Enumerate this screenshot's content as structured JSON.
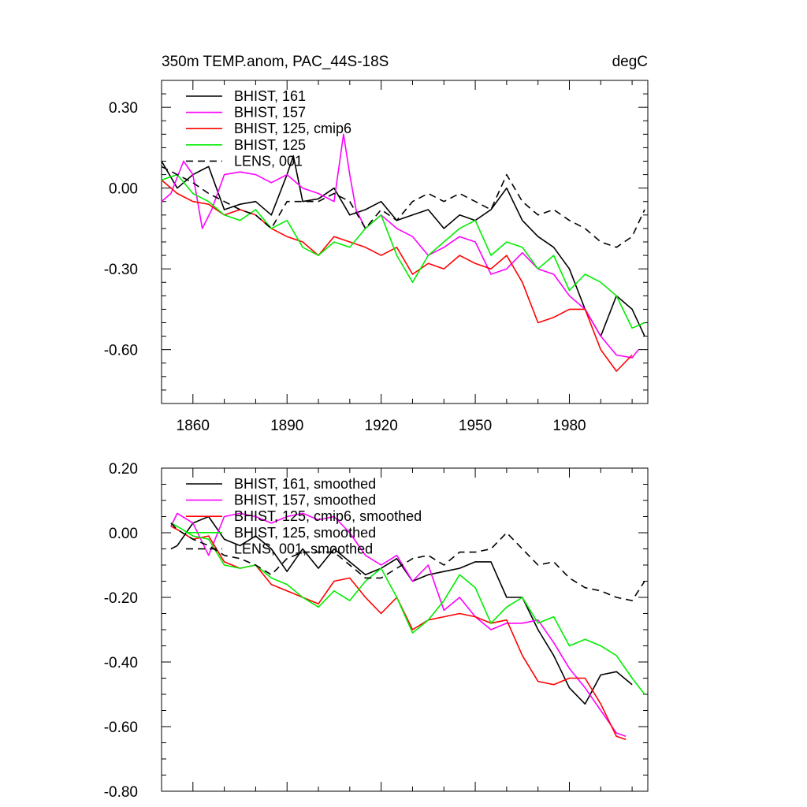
{
  "chart_data": [
    {
      "type": "line",
      "title": "350m TEMP.anom, PAC_44S-18S",
      "units": "degC",
      "xlim": [
        1850,
        2005
      ],
      "ylim": [
        -0.8,
        0.4
      ],
      "xticks": [
        1860,
        1890,
        1920,
        1950,
        1980
      ],
      "xtick_labels": [
        "1860",
        "1890",
        "1920",
        "1950",
        "1980"
      ],
      "yticks": [
        0.3,
        0.0,
        -0.3,
        -0.6
      ],
      "ytick_labels": [
        "0.30",
        "0.00",
        "-0.30",
        "-0.60"
      ],
      "legend_position": "top-left",
      "series": [
        {
          "name": "BHIST, 161",
          "color": "#000000",
          "dash": "solid",
          "x": [
            1850,
            1855,
            1860,
            1865,
            1870,
            1875,
            1880,
            1885,
            1890,
            1892,
            1895,
            1900,
            1905,
            1910,
            1915,
            1920,
            1925,
            1930,
            1935,
            1940,
            1945,
            1950,
            1955,
            1960,
            1965,
            1970,
            1975,
            1980,
            1985,
            1990,
            1995,
            2000,
            2004
          ],
          "y": [
            0.1,
            0.0,
            0.05,
            0.08,
            -0.08,
            -0.06,
            -0.05,
            -0.1,
            0.05,
            0.12,
            -0.05,
            -0.04,
            0.0,
            -0.1,
            -0.08,
            -0.05,
            -0.12,
            -0.1,
            -0.08,
            -0.15,
            -0.1,
            -0.12,
            -0.08,
            0.0,
            -0.12,
            -0.18,
            -0.22,
            -0.3,
            -0.45,
            -0.55,
            -0.4,
            -0.45,
            -0.55
          ]
        },
        {
          "name": "BHIST, 157",
          "color": "#ff00ff",
          "dash": "solid",
          "x": [
            1850,
            1853,
            1857,
            1860,
            1863,
            1866,
            1870,
            1875,
            1880,
            1885,
            1890,
            1895,
            1900,
            1905,
            1908,
            1910,
            1912,
            1915,
            1920,
            1925,
            1930,
            1935,
            1940,
            1945,
            1950,
            1955,
            1960,
            1965,
            1970,
            1975,
            1980,
            1985,
            1990,
            1995,
            2000,
            2002
          ],
          "y": [
            -0.05,
            -0.02,
            0.1,
            0.05,
            -0.15,
            -0.08,
            0.05,
            0.06,
            0.05,
            0.02,
            0.05,
            0.0,
            -0.02,
            -0.05,
            0.2,
            0.05,
            -0.08,
            -0.15,
            -0.1,
            -0.15,
            -0.18,
            -0.25,
            -0.22,
            -0.18,
            -0.2,
            -0.32,
            -0.3,
            -0.24,
            -0.3,
            -0.32,
            -0.4,
            -0.45,
            -0.55,
            -0.62,
            -0.63,
            -0.6
          ]
        },
        {
          "name": "BHIST, 125, cmip6",
          "color": "#ff0000",
          "dash": "solid",
          "x": [
            1850,
            1855,
            1860,
            1865,
            1870,
            1875,
            1880,
            1885,
            1890,
            1895,
            1900,
            1905,
            1910,
            1915,
            1920,
            1925,
            1930,
            1935,
            1940,
            1945,
            1950,
            1955,
            1960,
            1965,
            1970,
            1975,
            1980,
            1985,
            1990,
            1995,
            2000
          ],
          "y": [
            0.03,
            -0.02,
            -0.05,
            -0.06,
            -0.1,
            -0.08,
            -0.1,
            -0.15,
            -0.18,
            -0.2,
            -0.25,
            -0.18,
            -0.2,
            -0.22,
            -0.25,
            -0.22,
            -0.32,
            -0.28,
            -0.3,
            -0.25,
            -0.28,
            -0.3,
            -0.25,
            -0.35,
            -0.5,
            -0.48,
            -0.45,
            -0.45,
            -0.6,
            -0.68,
            -0.62
          ]
        },
        {
          "name": "BHIST, 125",
          "color": "#00ee00",
          "dash": "solid",
          "x": [
            1850,
            1855,
            1860,
            1865,
            1870,
            1875,
            1880,
            1885,
            1890,
            1895,
            1900,
            1905,
            1910,
            1915,
            1920,
            1925,
            1930,
            1935,
            1940,
            1945,
            1950,
            1955,
            1960,
            1965,
            1970,
            1975,
            1980,
            1985,
            1990,
            1995,
            2000,
            2004
          ],
          "y": [
            0.03,
            0.05,
            -0.02,
            -0.05,
            -0.1,
            -0.12,
            -0.08,
            -0.15,
            -0.12,
            -0.22,
            -0.25,
            -0.2,
            -0.22,
            -0.15,
            -0.1,
            -0.25,
            -0.35,
            -0.25,
            -0.2,
            -0.15,
            -0.12,
            -0.25,
            -0.2,
            -0.22,
            -0.3,
            -0.25,
            -0.38,
            -0.32,
            -0.35,
            -0.4,
            -0.52,
            -0.5
          ]
        },
        {
          "name": "LENS, 001",
          "color": "#000000",
          "dash": "dashed",
          "x": [
            1850,
            1855,
            1860,
            1865,
            1870,
            1875,
            1880,
            1885,
            1890,
            1895,
            1900,
            1905,
            1910,
            1915,
            1920,
            1925,
            1930,
            1935,
            1940,
            1945,
            1950,
            1955,
            1960,
            1965,
            1970,
            1975,
            1980,
            1985,
            1990,
            1995,
            2000,
            2004
          ],
          "y": [
            0.08,
            0.05,
            0.02,
            -0.02,
            -0.05,
            -0.08,
            -0.1,
            -0.15,
            -0.05,
            -0.05,
            -0.05,
            -0.02,
            -0.05,
            -0.15,
            -0.08,
            -0.12,
            -0.05,
            -0.02,
            -0.05,
            -0.02,
            -0.05,
            -0.08,
            0.05,
            -0.05,
            -0.1,
            -0.08,
            -0.12,
            -0.15,
            -0.2,
            -0.22,
            -0.18,
            -0.08
          ]
        }
      ]
    },
    {
      "type": "line",
      "xlim": [
        1850,
        2005
      ],
      "ylim": [
        -0.8,
        0.2
      ],
      "xticks": [
        1860,
        1890,
        1920,
        1950,
        1980
      ],
      "yticks": [
        0.2,
        0.0,
        -0.2,
        -0.4,
        -0.6,
        -0.8
      ],
      "ytick_labels": [
        "0.20",
        "0.00",
        "-0.20",
        "-0.40",
        "-0.60",
        "-0.80"
      ],
      "legend_position": "top-left",
      "series": [
        {
          "name": "BHIST, 161, smoothed",
          "color": "#000000",
          "dash": "solid",
          "x": [
            1853,
            1855,
            1860,
            1865,
            1870,
            1875,
            1880,
            1885,
            1890,
            1895,
            1900,
            1905,
            1910,
            1915,
            1920,
            1925,
            1930,
            1935,
            1940,
            1945,
            1950,
            1955,
            1960,
            1965,
            1970,
            1975,
            1980,
            1985,
            1990,
            1995,
            2000
          ],
          "y": [
            -0.05,
            -0.04,
            0.03,
            0.05,
            -0.02,
            -0.04,
            -0.01,
            -0.05,
            -0.12,
            -0.05,
            -0.11,
            -0.05,
            -0.09,
            -0.13,
            -0.11,
            -0.08,
            -0.15,
            -0.13,
            -0.12,
            -0.11,
            -0.09,
            -0.09,
            -0.2,
            -0.2,
            -0.3,
            -0.38,
            -0.48,
            -0.53,
            -0.44,
            -0.43,
            -0.47
          ]
        },
        {
          "name": "BHIST, 157, smoothed",
          "color": "#ff00ff",
          "dash": "solid",
          "x": [
            1853,
            1855,
            1860,
            1865,
            1870,
            1875,
            1880,
            1885,
            1890,
            1895,
            1900,
            1905,
            1910,
            1915,
            1920,
            1925,
            1930,
            1935,
            1940,
            1945,
            1950,
            1955,
            1960,
            1965,
            1970,
            1975,
            1980,
            1985,
            1990,
            1995,
            1998
          ],
          "y": [
            0.02,
            0.06,
            0.03,
            -0.07,
            0.05,
            0.06,
            0.05,
            0.03,
            0.05,
            0.06,
            0.04,
            0.05,
            0.0,
            -0.07,
            -0.1,
            -0.07,
            -0.15,
            -0.1,
            -0.24,
            -0.2,
            -0.26,
            -0.3,
            -0.28,
            -0.28,
            -0.27,
            -0.34,
            -0.42,
            -0.48,
            -0.55,
            -0.62,
            -0.63
          ]
        },
        {
          "name": "BHIST, 125, cmip6, smoothed",
          "color": "#ff0000",
          "dash": "solid",
          "x": [
            1853,
            1855,
            1860,
            1865,
            1870,
            1875,
            1880,
            1885,
            1890,
            1895,
            1900,
            1905,
            1910,
            1915,
            1920,
            1925,
            1930,
            1935,
            1940,
            1945,
            1950,
            1955,
            1960,
            1965,
            1970,
            1975,
            1980,
            1985,
            1990,
            1995,
            1998
          ],
          "y": [
            0.02,
            0.01,
            -0.02,
            -0.01,
            -0.09,
            -0.11,
            -0.1,
            -0.16,
            -0.18,
            -0.2,
            -0.22,
            -0.15,
            -0.14,
            -0.2,
            -0.25,
            -0.2,
            -0.3,
            -0.27,
            -0.26,
            -0.25,
            -0.26,
            -0.28,
            -0.27,
            -0.38,
            -0.46,
            -0.47,
            -0.45,
            -0.45,
            -0.53,
            -0.63,
            -0.64
          ]
        },
        {
          "name": "BHIST, 125, smoothed",
          "color": "#00ee00",
          "dash": "solid",
          "x": [
            1853,
            1855,
            1860,
            1865,
            1870,
            1875,
            1880,
            1885,
            1890,
            1895,
            1900,
            1905,
            1910,
            1915,
            1920,
            1925,
            1930,
            1935,
            1940,
            1945,
            1950,
            1955,
            1960,
            1965,
            1970,
            1975,
            1980,
            1985,
            1990,
            1995,
            2000,
            2004
          ],
          "y": [
            0.03,
            0.02,
            -0.01,
            -0.02,
            -0.1,
            -0.11,
            -0.1,
            -0.14,
            -0.16,
            -0.2,
            -0.23,
            -0.18,
            -0.21,
            -0.15,
            -0.11,
            -0.2,
            -0.31,
            -0.27,
            -0.21,
            -0.13,
            -0.17,
            -0.28,
            -0.23,
            -0.2,
            -0.28,
            -0.26,
            -0.35,
            -0.33,
            -0.35,
            -0.38,
            -0.45,
            -0.5
          ]
        },
        {
          "name": "LENS, 001, smoothed",
          "color": "#000000",
          "dash": "dashed",
          "x": [
            1853,
            1855,
            1860,
            1865,
            1870,
            1875,
            1880,
            1885,
            1890,
            1895,
            1900,
            1905,
            1910,
            1915,
            1920,
            1925,
            1930,
            1935,
            1940,
            1945,
            1950,
            1955,
            1960,
            1965,
            1970,
            1975,
            1980,
            1985,
            1990,
            1995,
            2000,
            2004
          ],
          "y": [
            0.03,
            0.01,
            -0.02,
            -0.04,
            -0.07,
            -0.08,
            -0.1,
            -0.13,
            -0.08,
            -0.06,
            -0.06,
            -0.06,
            -0.1,
            -0.14,
            -0.14,
            -0.11,
            -0.08,
            -0.07,
            -0.1,
            -0.06,
            -0.06,
            -0.05,
            0.0,
            -0.05,
            -0.1,
            -0.09,
            -0.14,
            -0.17,
            -0.18,
            -0.2,
            -0.21,
            -0.15
          ]
        }
      ]
    }
  ]
}
